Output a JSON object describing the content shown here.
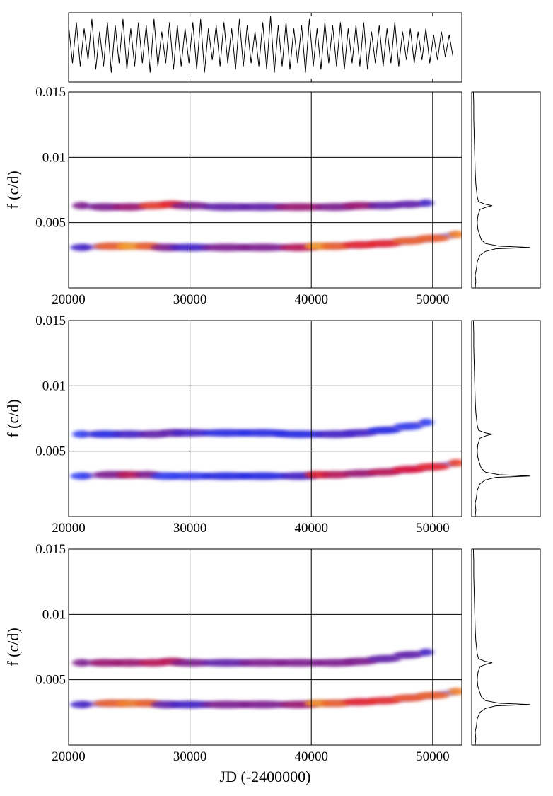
{
  "chart_data": [
    {
      "type": "line",
      "xlim": [
        20000,
        52400
      ],
      "ylim": [
        -1.1,
        1.1
      ],
      "xticks": [
        20000,
        30000,
        40000,
        50000
      ],
      "color": "#000000",
      "x": [
        20000,
        20320,
        20640,
        20960,
        21280,
        21600,
        21920,
        22240,
        22560,
        22880,
        23200,
        23520,
        23840,
        24160,
        24480,
        24800,
        25120,
        25440,
        25760,
        26080,
        26400,
        26720,
        27040,
        27360,
        27680,
        28000,
        28320,
        28640,
        28960,
        29280,
        29600,
        29920,
        30240,
        30560,
        30880,
        31200,
        31520,
        31840,
        32160,
        32480,
        32800,
        33120,
        33440,
        33760,
        34080,
        34400,
        34720,
        35040,
        35360,
        35680,
        36000,
        36320,
        36640,
        36960,
        37280,
        37600,
        37920,
        38240,
        38560,
        38880,
        39200,
        39520,
        39840,
        40160,
        40480,
        40800,
        41120,
        41440,
        41760,
        42080,
        42400,
        42720,
        43040,
        43360,
        43680,
        44000,
        44320,
        44640,
        44960,
        45280,
        45600,
        45920,
        46240,
        46560,
        46880,
        47200,
        47520,
        47840,
        48160,
        48480,
        48800,
        49120,
        49440,
        49760,
        50080,
        50400,
        50720,
        51040,
        51360,
        51680
      ],
      "values": [
        0.7,
        -0.5,
        0.8,
        -0.6,
        0.6,
        -0.4,
        0.9,
        -0.7,
        0.5,
        -0.6,
        0.8,
        -0.8,
        0.7,
        -0.5,
        0.9,
        -0.7,
        0.6,
        -0.6,
        0.8,
        -0.5,
        0.7,
        -0.8,
        0.9,
        -0.6,
        0.5,
        -0.5,
        0.8,
        -0.7,
        0.7,
        -0.6,
        0.6,
        -0.5,
        0.8,
        -0.7,
        0.9,
        -0.8,
        0.6,
        -0.4,
        0.7,
        -0.6,
        0.8,
        -0.5,
        0.6,
        -0.7,
        0.9,
        -0.6,
        0.7,
        -0.5,
        0.5,
        -0.6,
        0.8,
        -0.7,
        1.0,
        -0.8,
        0.7,
        -0.6,
        0.8,
        -0.7,
        0.6,
        -0.5,
        0.7,
        -0.8,
        0.9,
        -0.6,
        0.6,
        -0.7,
        0.8,
        -0.5,
        0.7,
        -0.6,
        0.8,
        -0.7,
        0.6,
        -0.5,
        0.7,
        -0.6,
        0.8,
        -0.7,
        0.5,
        -0.5,
        0.7,
        -0.6,
        0.6,
        -0.5,
        0.8,
        -0.6,
        0.5,
        -0.4,
        0.6,
        -0.5,
        0.5,
        -0.4,
        0.6,
        -0.5,
        0.4,
        -0.4,
        0.5,
        -0.3,
        0.4,
        -0.3
      ]
    },
    {
      "type": "spectrogram",
      "ylabel": "f (c/d)",
      "xlim": [
        20000,
        52400
      ],
      "ylim": [
        0,
        0.015
      ],
      "xticks": [
        20000,
        30000,
        40000,
        50000
      ],
      "yticks": [
        0.005,
        0.01,
        0.015
      ],
      "grid": true,
      "colormap": [
        "#ffffff",
        "#1a2cf0",
        "#e8102a",
        "#ffe020"
      ],
      "series": [
        {
          "x": [
            21000,
            23500,
            25000,
            26500,
            28000,
            30000,
            33000,
            36000,
            39000,
            40500,
            42000,
            44000,
            46000,
            48000,
            50000,
            52000
          ],
          "values": [
            0.0031,
            0.0032,
            0.0032,
            0.0032,
            0.0031,
            0.0031,
            0.0031,
            0.0031,
            0.0031,
            0.0032,
            0.0032,
            0.0033,
            0.0034,
            0.0036,
            0.0038,
            0.0041
          ],
          "power": [
            0.4,
            0.8,
            0.9,
            0.8,
            0.5,
            0.4,
            0.5,
            0.5,
            0.6,
            0.9,
            0.8,
            0.7,
            0.7,
            0.8,
            0.8,
            0.85
          ]
        },
        {
          "x": [
            21000,
            23000,
            25000,
            27000,
            28500,
            30000,
            33000,
            36000,
            39000,
            42000,
            44000,
            46000,
            48000,
            49500
          ],
          "values": [
            0.0063,
            0.0062,
            0.0062,
            0.0063,
            0.0064,
            0.0063,
            0.0062,
            0.0062,
            0.0062,
            0.0062,
            0.0063,
            0.0063,
            0.0064,
            0.0065
          ],
          "power": [
            0.5,
            0.5,
            0.55,
            0.75,
            0.7,
            0.5,
            0.45,
            0.45,
            0.55,
            0.5,
            0.55,
            0.45,
            0.45,
            0.4
          ]
        }
      ]
    },
    {
      "type": "spectrogram",
      "ylabel": "f (c/d)",
      "xlim": [
        20000,
        52400
      ],
      "ylim": [
        0,
        0.015
      ],
      "xticks": [
        20000,
        30000,
        40000,
        50000
      ],
      "yticks": [
        0.005,
        0.01,
        0.015
      ],
      "grid": true,
      "colormap": [
        "#ffffff",
        "#1a2cf0",
        "#e8102a",
        "#ffe020"
      ],
      "series": [
        {
          "x": [
            21000,
            23500,
            25000,
            26500,
            28000,
            30000,
            33000,
            36000,
            39000,
            40500,
            42000,
            44000,
            46000,
            48000,
            50000,
            52000
          ],
          "values": [
            0.0031,
            0.0032,
            0.0032,
            0.0032,
            0.0031,
            0.0031,
            0.0031,
            0.0031,
            0.0031,
            0.0032,
            0.0032,
            0.0033,
            0.0034,
            0.0036,
            0.0038,
            0.0041
          ],
          "power": [
            0.3,
            0.5,
            0.6,
            0.5,
            0.3,
            0.3,
            0.35,
            0.35,
            0.4,
            0.7,
            0.6,
            0.55,
            0.6,
            0.65,
            0.7,
            0.75
          ]
        },
        {
          "x": [
            21000,
            23000,
            25000,
            27000,
            28500,
            30000,
            33000,
            36000,
            39000,
            42000,
            44000,
            46000,
            48000,
            49500
          ],
          "values": [
            0.0063,
            0.0063,
            0.0063,
            0.0063,
            0.0064,
            0.0064,
            0.0064,
            0.0064,
            0.0063,
            0.0063,
            0.0064,
            0.0066,
            0.0069,
            0.0072
          ],
          "power": [
            0.3,
            0.35,
            0.4,
            0.45,
            0.45,
            0.4,
            0.35,
            0.35,
            0.35,
            0.4,
            0.4,
            0.35,
            0.3,
            0.3
          ]
        }
      ]
    },
    {
      "type": "spectrogram",
      "ylabel": "f (c/d)",
      "xlabel": "JD (-2400000)",
      "xlim": [
        20000,
        52400
      ],
      "ylim": [
        0,
        0.015
      ],
      "xticks": [
        20000,
        30000,
        40000,
        50000
      ],
      "yticks": [
        0.005,
        0.01,
        0.015
      ],
      "grid": true,
      "colormap": [
        "#ffffff",
        "#1a2cf0",
        "#e8102a",
        "#ffe020"
      ],
      "series": [
        {
          "x": [
            21000,
            23500,
            25000,
            26500,
            28000,
            30000,
            33000,
            36000,
            39000,
            40500,
            42000,
            44000,
            46000,
            48000,
            50000,
            52000
          ],
          "values": [
            0.0031,
            0.0032,
            0.0032,
            0.0032,
            0.0031,
            0.0031,
            0.0031,
            0.0031,
            0.0031,
            0.0032,
            0.0032,
            0.0033,
            0.0034,
            0.0036,
            0.0038,
            0.0041
          ],
          "power": [
            0.4,
            0.8,
            0.85,
            0.8,
            0.45,
            0.4,
            0.5,
            0.5,
            0.55,
            0.88,
            0.8,
            0.7,
            0.72,
            0.78,
            0.8,
            0.85
          ]
        },
        {
          "x": [
            21000,
            23000,
            25000,
            27000,
            28500,
            30000,
            33000,
            36000,
            39000,
            42000,
            44000,
            46000,
            48000,
            49500
          ],
          "values": [
            0.0063,
            0.0063,
            0.0063,
            0.0063,
            0.0064,
            0.0063,
            0.0063,
            0.0063,
            0.0063,
            0.0063,
            0.0064,
            0.0066,
            0.0069,
            0.0071
          ],
          "power": [
            0.5,
            0.55,
            0.55,
            0.6,
            0.6,
            0.5,
            0.45,
            0.5,
            0.5,
            0.5,
            0.5,
            0.45,
            0.45,
            0.4
          ]
        }
      ]
    },
    {
      "type": "power-spectrum",
      "ylim": [
        0,
        0.015
      ],
      "xlim": [
        0,
        1
      ],
      "color": "#000000",
      "y": [
        0,
        0.0005,
        0.001,
        0.0015,
        0.002,
        0.0025,
        0.0028,
        0.003,
        0.0031,
        0.0032,
        0.0034,
        0.0037,
        0.004,
        0.0045,
        0.005,
        0.0055,
        0.006,
        0.0062,
        0.0063,
        0.0064,
        0.0066,
        0.007,
        0.008,
        0.009,
        0.01,
        0.011,
        0.012,
        0.013,
        0.014,
        0.015
      ],
      "values": [
        0.05,
        0.06,
        0.05,
        0.07,
        0.08,
        0.12,
        0.2,
        0.35,
        0.85,
        0.4,
        0.2,
        0.14,
        0.12,
        0.09,
        0.08,
        0.09,
        0.12,
        0.22,
        0.3,
        0.2,
        0.1,
        0.08,
        0.06,
        0.05,
        0.045,
        0.04,
        0.035,
        0.03,
        0.03,
        0.025
      ]
    }
  ]
}
